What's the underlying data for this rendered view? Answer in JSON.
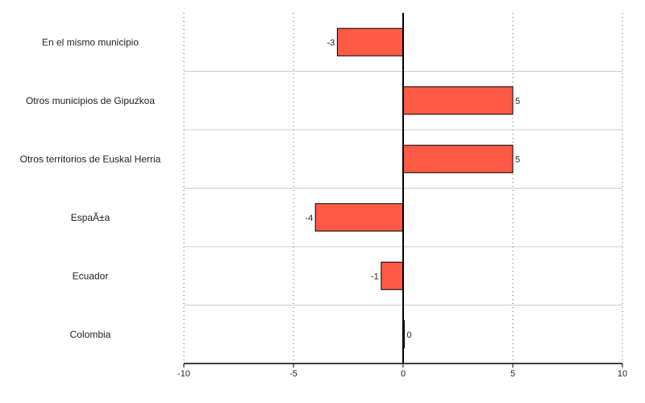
{
  "chart_data": {
    "type": "bar",
    "orientation": "horizontal",
    "title": "",
    "xlabel": "",
    "ylabel": "",
    "categories": [
      "En el mismo municipio",
      "Otros municipios de Gipuzkoa",
      "Otros territorios de Euskal Herria",
      "EspaÃ±a",
      "Ecuador",
      "Colombia"
    ],
    "values": [
      -3,
      5,
      5,
      -4,
      -1,
      0
    ],
    "data_labels": [
      "-3",
      "5",
      "5",
      "-4",
      "-1",
      "0"
    ],
    "xlim": [
      -10,
      10
    ],
    "xticks": [
      -10,
      -5,
      0,
      5,
      10
    ],
    "xtick_labels": [
      "-10",
      "-5",
      "0",
      "5",
      "10"
    ],
    "grid": true,
    "legend": "none",
    "colors": {
      "bar_fill": "#ff5a45",
      "bar_stroke": "#000000",
      "grid_vertical": "#666666",
      "grid_horizontal": "#cccccc",
      "axis": "#000000"
    }
  }
}
